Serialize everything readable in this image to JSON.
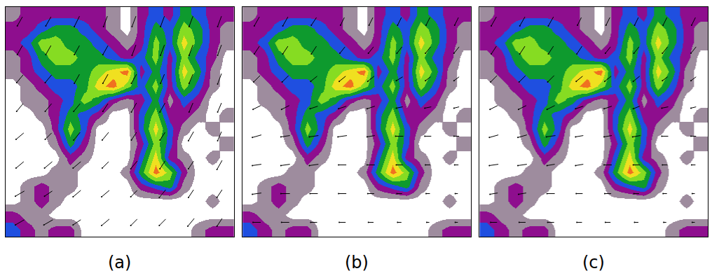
{
  "chart_data": [
    {
      "type": "heatmap",
      "title": "(a)",
      "xlim": [
        0,
        16
      ],
      "ylim": [
        0,
        16
      ],
      "zlim": [
        0,
        7
      ],
      "tick_labels": false,
      "grid": false,
      "colors": [
        "#ffffff",
        "#9e8c9e",
        "#8e0e8e",
        "#1f4fe0",
        "#0e9a2e",
        "#86dc22",
        "#f0e020",
        "#f07020"
      ],
      "z": [
        [
          3,
          2,
          1,
          2,
          2,
          0,
          0,
          0,
          0,
          0,
          0,
          0,
          0,
          1,
          2,
          2
        ],
        [
          2,
          1,
          1,
          0,
          0,
          0,
          0,
          0,
          0,
          0,
          0,
          0,
          0,
          0,
          0,
          0
        ],
        [
          0,
          1,
          2,
          1,
          0,
          0,
          0,
          0,
          0,
          0,
          0,
          0,
          0,
          0,
          1,
          0
        ],
        [
          0,
          1,
          2,
          1,
          1,
          0,
          0,
          0,
          0,
          2,
          3,
          4,
          1,
          0,
          0,
          0
        ],
        [
          0,
          0,
          0,
          1,
          1,
          0,
          0,
          0,
          1,
          4,
          7,
          5,
          2,
          0,
          0,
          0
        ],
        [
          0,
          0,
          0,
          0,
          2,
          1,
          0,
          0,
          0,
          3,
          6,
          2,
          1,
          0,
          1,
          0
        ],
        [
          0,
          0,
          0,
          1,
          4,
          2,
          0,
          0,
          0,
          2,
          5,
          3,
          0,
          0,
          0,
          1
        ],
        [
          0,
          0,
          0,
          2,
          5,
          3,
          0,
          0,
          0,
          3,
          6,
          3,
          1,
          0,
          1,
          0
        ],
        [
          0,
          0,
          1,
          2,
          4,
          3,
          2,
          0,
          0,
          3,
          5,
          2,
          2,
          1,
          0,
          1
        ],
        [
          0,
          1,
          1,
          2,
          3,
          5,
          4,
          2,
          1,
          2,
          4,
          1,
          3,
          2,
          0,
          0
        ],
        [
          0,
          1,
          2,
          3,
          3,
          4,
          6,
          7,
          5,
          3,
          5,
          2,
          5,
          3,
          1,
          0
        ],
        [
          1,
          2,
          3,
          4,
          4,
          4,
          5,
          6,
          7,
          2,
          4,
          2,
          6,
          4,
          1,
          0
        ],
        [
          1,
          2,
          4,
          5,
          5,
          4,
          4,
          3,
          2,
          3,
          5,
          2,
          5,
          3,
          2,
          0
        ],
        [
          2,
          3,
          5,
          5,
          4,
          4,
          3,
          2,
          1,
          2,
          5,
          3,
          6,
          4,
          2,
          1
        ],
        [
          2,
          2,
          3,
          4,
          4,
          3,
          2,
          1,
          0,
          2,
          4,
          3,
          5,
          4,
          2,
          1
        ],
        [
          1,
          2,
          2,
          2,
          2,
          2,
          2,
          1,
          0,
          2,
          3,
          2,
          4,
          3,
          2,
          2
        ]
      ],
      "u": [
        [
          -7,
          -7,
          -6,
          -6,
          -5,
          -5,
          -5,
          -4
        ],
        [
          -7,
          -6,
          -6,
          -6,
          -5,
          -5,
          -4,
          -4
        ],
        [
          -6,
          -6,
          -6,
          -5,
          -5,
          -4,
          -4,
          -4
        ],
        [
          -6,
          -5,
          -5,
          -5,
          -4,
          -4,
          -4,
          -3
        ],
        [
          -5,
          -5,
          -5,
          -4,
          -4,
          -4,
          -3,
          -3
        ],
        [
          -5,
          -5,
          -4,
          -4,
          -4,
          -3,
          -3,
          -3
        ],
        [
          -4,
          -4,
          -4,
          -4,
          -3,
          -3,
          -3,
          -3
        ],
        [
          -4,
          -4,
          -4,
          -3,
          -3,
          -3,
          -3,
          -3
        ]
      ],
      "v": [
        [
          -4,
          -4,
          -4,
          -5,
          -5,
          -5,
          -6,
          -6
        ],
        [
          -4,
          -4,
          -5,
          -5,
          -5,
          -6,
          -6,
          -6
        ],
        [
          -5,
          -5,
          -5,
          -5,
          -6,
          -6,
          -6,
          -7
        ],
        [
          -5,
          -5,
          -6,
          -6,
          -6,
          -6,
          -7,
          -7
        ],
        [
          -6,
          -6,
          -6,
          -6,
          -7,
          -7,
          -7,
          -7
        ],
        [
          -6,
          -6,
          -7,
          -7,
          -7,
          -7,
          -7,
          -8
        ],
        [
          -7,
          -7,
          -7,
          -7,
          -8,
          -8,
          -8,
          -8
        ],
        [
          -7,
          -7,
          -8,
          -8,
          -8,
          -8,
          -8,
          -8
        ]
      ]
    },
    {
      "type": "heatmap",
      "title": "(b)",
      "xlim": [
        0,
        16
      ],
      "ylim": [
        0,
        16
      ],
      "zlim": [
        0,
        7
      ],
      "tick_labels": false,
      "grid": false,
      "colors": [
        "#ffffff",
        "#9e8c9e",
        "#8e0e8e",
        "#1f4fe0",
        "#0e9a2e",
        "#86dc22",
        "#f0e020",
        "#f07020"
      ],
      "z": [
        [
          3,
          2,
          1,
          2,
          2,
          0,
          0,
          0,
          0,
          0,
          0,
          0,
          0,
          1,
          2,
          2
        ],
        [
          2,
          1,
          1,
          0,
          0,
          0,
          0,
          0,
          0,
          0,
          0,
          0,
          0,
          0,
          0,
          0
        ],
        [
          0,
          1,
          2,
          1,
          0,
          0,
          0,
          0,
          0,
          0,
          0,
          0,
          0,
          0,
          1,
          0
        ],
        [
          0,
          1,
          2,
          1,
          1,
          0,
          0,
          0,
          0,
          2,
          3,
          4,
          1,
          0,
          0,
          0
        ],
        [
          0,
          0,
          0,
          1,
          1,
          0,
          0,
          0,
          1,
          4,
          7,
          5,
          2,
          0,
          0,
          0
        ],
        [
          0,
          0,
          0,
          0,
          2,
          1,
          0,
          0,
          0,
          3,
          6,
          2,
          1,
          0,
          1,
          0
        ],
        [
          0,
          0,
          0,
          1,
          4,
          2,
          0,
          0,
          0,
          2,
          5,
          3,
          0,
          0,
          0,
          1
        ],
        [
          0,
          0,
          0,
          2,
          5,
          3,
          0,
          0,
          0,
          3,
          6,
          3,
          1,
          0,
          1,
          0
        ],
        [
          0,
          0,
          1,
          2,
          4,
          3,
          2,
          0,
          0,
          3,
          5,
          2,
          2,
          1,
          0,
          1
        ],
        [
          0,
          1,
          1,
          2,
          3,
          5,
          4,
          2,
          1,
          2,
          4,
          1,
          3,
          2,
          0,
          0
        ],
        [
          0,
          1,
          2,
          3,
          3,
          4,
          6,
          7,
          5,
          3,
          5,
          2,
          5,
          3,
          1,
          0
        ],
        [
          1,
          2,
          3,
          4,
          4,
          4,
          5,
          6,
          7,
          2,
          4,
          2,
          6,
          4,
          1,
          0
        ],
        [
          1,
          2,
          4,
          5,
          5,
          4,
          4,
          3,
          2,
          3,
          5,
          2,
          5,
          3,
          2,
          0
        ],
        [
          2,
          3,
          5,
          5,
          4,
          4,
          3,
          2,
          1,
          2,
          5,
          3,
          6,
          4,
          2,
          1
        ],
        [
          2,
          2,
          3,
          4,
          4,
          3,
          2,
          1,
          0,
          2,
          4,
          3,
          5,
          4,
          2,
          1
        ],
        [
          1,
          2,
          2,
          2,
          2,
          2,
          2,
          1,
          0,
          2,
          3,
          2,
          4,
          3,
          2,
          2
        ]
      ],
      "u": [
        [
          -6,
          -6,
          -5,
          -5,
          -4,
          -3,
          -2,
          -2
        ],
        [
          -7,
          -7,
          -6,
          -6,
          -5,
          -4,
          -3,
          -2
        ],
        [
          -7,
          -7,
          -7,
          -6,
          -6,
          -5,
          -4,
          -3
        ],
        [
          -7,
          -7,
          -7,
          -7,
          -6,
          -6,
          -5,
          -4
        ],
        [
          -6,
          -6,
          -6,
          -6,
          -6,
          -5,
          -5,
          -4
        ],
        [
          -5,
          -5,
          -5,
          -5,
          -5,
          -5,
          -4,
          -4
        ],
        [
          -4,
          -4,
          -4,
          -4,
          -4,
          -4,
          -4,
          -4
        ],
        [
          -4,
          -4,
          -4,
          -3,
          -3,
          -3,
          -3,
          -3
        ]
      ],
      "v": [
        [
          0,
          0,
          0,
          0,
          0,
          0,
          0,
          0
        ],
        [
          -1,
          0,
          0,
          0,
          0,
          0,
          0,
          0
        ],
        [
          -1,
          -1,
          -1,
          0,
          0,
          0,
          0,
          0
        ],
        [
          -2,
          -1,
          -1,
          -1,
          -1,
          0,
          0,
          0
        ],
        [
          -3,
          -3,
          -2,
          -2,
          -2,
          -1,
          -1,
          -1
        ],
        [
          -5,
          -5,
          -4,
          -4,
          -4,
          -3,
          -3,
          -3
        ],
        [
          -6,
          -6,
          -6,
          -5,
          -5,
          -5,
          -5,
          -5
        ],
        [
          -7,
          -7,
          -6,
          -6,
          -6,
          -6,
          -6,
          -6
        ]
      ]
    },
    {
      "type": "heatmap",
      "title": "(c)",
      "xlim": [
        0,
        16
      ],
      "ylim": [
        0,
        16
      ],
      "zlim": [
        0,
        7
      ],
      "tick_labels": false,
      "grid": false,
      "colors": [
        "#ffffff",
        "#9e8c9e",
        "#8e0e8e",
        "#1f4fe0",
        "#0e9a2e",
        "#86dc22",
        "#f0e020",
        "#f07020"
      ],
      "z": [
        [
          3,
          2,
          1,
          2,
          2,
          0,
          0,
          0,
          0,
          0,
          0,
          0,
          0,
          1,
          2,
          2
        ],
        [
          2,
          1,
          1,
          0,
          0,
          0,
          0,
          0,
          0,
          0,
          0,
          0,
          0,
          0,
          0,
          0
        ],
        [
          0,
          1,
          2,
          1,
          0,
          0,
          0,
          0,
          0,
          0,
          0,
          0,
          0,
          0,
          1,
          0
        ],
        [
          0,
          1,
          2,
          1,
          1,
          0,
          0,
          0,
          0,
          2,
          3,
          4,
          1,
          0,
          0,
          0
        ],
        [
          0,
          0,
          0,
          1,
          1,
          0,
          0,
          0,
          1,
          4,
          7,
          5,
          2,
          0,
          0,
          0
        ],
        [
          0,
          0,
          0,
          0,
          2,
          1,
          0,
          0,
          0,
          3,
          6,
          2,
          1,
          0,
          1,
          0
        ],
        [
          0,
          0,
          0,
          1,
          4,
          2,
          0,
          0,
          0,
          2,
          5,
          3,
          0,
          0,
          0,
          1
        ],
        [
          0,
          0,
          0,
          2,
          5,
          3,
          0,
          0,
          0,
          3,
          6,
          3,
          1,
          0,
          1,
          0
        ],
        [
          0,
          0,
          1,
          2,
          4,
          3,
          2,
          0,
          0,
          3,
          5,
          2,
          2,
          1,
          0,
          1
        ],
        [
          0,
          1,
          1,
          2,
          3,
          5,
          4,
          2,
          1,
          2,
          4,
          1,
          3,
          2,
          0,
          0
        ],
        [
          0,
          1,
          2,
          3,
          3,
          4,
          6,
          7,
          5,
          3,
          5,
          2,
          5,
          3,
          1,
          0
        ],
        [
          1,
          2,
          3,
          4,
          4,
          4,
          5,
          6,
          7,
          2,
          4,
          2,
          6,
          4,
          1,
          0
        ],
        [
          1,
          2,
          4,
          5,
          5,
          4,
          4,
          3,
          2,
          3,
          5,
          2,
          5,
          3,
          2,
          0
        ],
        [
          2,
          3,
          5,
          5,
          4,
          4,
          3,
          2,
          1,
          2,
          5,
          3,
          6,
          4,
          2,
          1
        ],
        [
          2,
          2,
          3,
          4,
          4,
          3,
          2,
          1,
          0,
          2,
          4,
          3,
          5,
          4,
          2,
          1
        ],
        [
          1,
          2,
          2,
          2,
          2,
          2,
          2,
          1,
          0,
          2,
          3,
          2,
          4,
          3,
          2,
          2
        ]
      ],
      "u": [
        [
          -5,
          -5,
          -5,
          -4,
          -4,
          -3,
          -2,
          -2
        ],
        [
          -6,
          -6,
          -6,
          -5,
          -5,
          -4,
          -3,
          -2
        ],
        [
          -7,
          -7,
          -6,
          -6,
          -6,
          -5,
          -4,
          -3
        ],
        [
          -7,
          -7,
          -7,
          -6,
          -6,
          -6,
          -5,
          -4
        ],
        [
          -6,
          -6,
          -6,
          -6,
          -6,
          -5,
          -5,
          -4
        ],
        [
          -5,
          -5,
          -5,
          -5,
          -5,
          -5,
          -4,
          -4
        ],
        [
          -4,
          -4,
          -4,
          -4,
          -4,
          -4,
          -4,
          -4
        ],
        [
          -4,
          -4,
          -4,
          -3,
          -3,
          -3,
          -3,
          -3
        ]
      ],
      "v": [
        [
          0,
          0,
          0,
          0,
          0,
          0,
          0,
          0
        ],
        [
          -1,
          -1,
          0,
          0,
          0,
          0,
          0,
          0
        ],
        [
          -1,
          -1,
          -1,
          -1,
          0,
          0,
          0,
          0
        ],
        [
          -2,
          -2,
          -1,
          -1,
          -1,
          -1,
          0,
          0
        ],
        [
          -3,
          -3,
          -3,
          -2,
          -2,
          -2,
          -1,
          -1
        ],
        [
          -5,
          -5,
          -5,
          -4,
          -4,
          -4,
          -3,
          -3
        ],
        [
          -6,
          -6,
          -6,
          -6,
          -5,
          -5,
          -5,
          -5
        ],
        [
          -7,
          -7,
          -7,
          -6,
          -6,
          -6,
          -6,
          -6
        ]
      ]
    }
  ]
}
